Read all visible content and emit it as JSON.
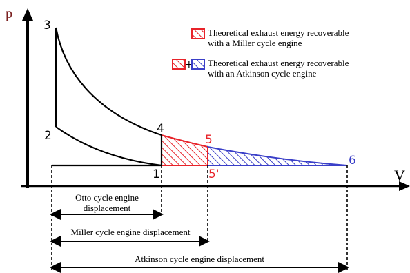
{
  "axes": {
    "y_label": "p",
    "x_label": "V",
    "y_label_color": "#7a1f1f"
  },
  "points": {
    "p1": "1",
    "p2": "2",
    "p3": "3",
    "p4": "4",
    "p5": "5",
    "p5prime": "5'",
    "p6": "6"
  },
  "legend": {
    "miller_line1": "Theoretical exhaust energy recoverable",
    "miller_line2": "with a Miller cycle engine",
    "atkinson_line1": "Theoretical exhaust energy recoverable",
    "atkinson_line2": "with an Atkinson cycle engine",
    "plus_sign": "+"
  },
  "displacements": {
    "otto_line1": "Otto cycle engine",
    "otto_line2": "displacement",
    "miller": "Miller cycle engine displacement",
    "atkinson": "Atkinson cycle engine displacement"
  },
  "colors": {
    "miller": "#e8232a",
    "atkinson": "#3a3fc8",
    "axis": "#000000"
  }
}
